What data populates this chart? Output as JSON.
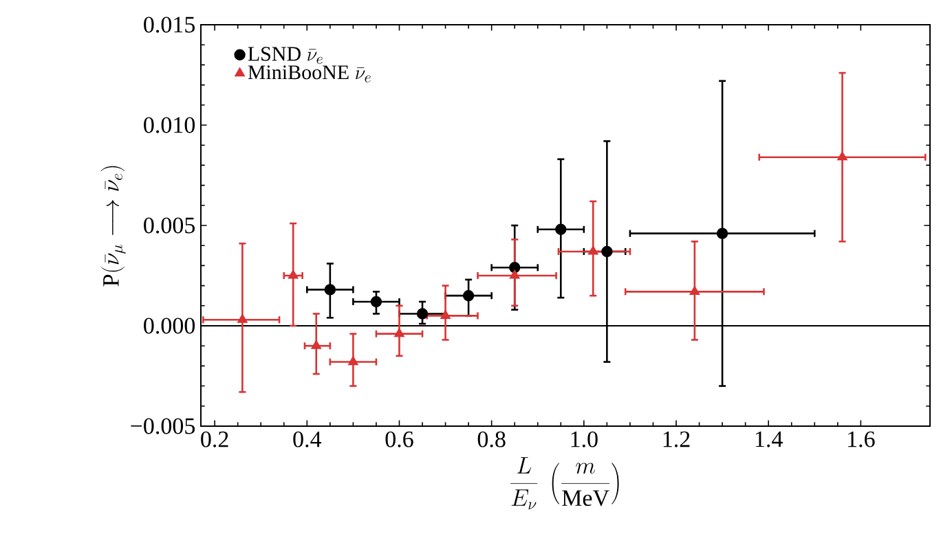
{
  "chart_data": {
    "type": "scatter",
    "xlabel": "\\frac{L}{E_{\\nu}}\\ \\left(\\frac{m}{\\mathrm{MeV}}\\right)",
    "ylabel": "\\mathrm{P}(\\bar{\\nu}_{\\mu}\\longrightarrow\\bar{\\nu}_{e})",
    "xlim": [
      0.17,
      1.75
    ],
    "ylim": [
      -0.005,
      0.015
    ],
    "xticks": [
      0.2,
      0.4,
      0.6,
      0.8,
      {
        "value": 1.0,
        "label": "1.0"
      },
      1.2,
      1.4,
      1.6
    ],
    "yticks": [
      {
        "value": -0.005,
        "label": "−0.005"
      },
      {
        "value": 0,
        "label": "0.000"
      },
      {
        "value": 0.005,
        "label": "0.005"
      },
      {
        "value": 0.01,
        "label": "0.010"
      },
      {
        "value": 0.015,
        "label": "0.015"
      }
    ],
    "legend": "top left",
    "ref_lines": [
      {
        "axis": "y",
        "value": 0,
        "color": "#000000"
      }
    ],
    "series": [
      {
        "name": "\\mathrm{LSND}\\ \\bar{\\nu}_{e}",
        "color": "#000000",
        "marker": "circle",
        "x": [
          0.45,
          0.55,
          0.65,
          0.75,
          0.85,
          0.95,
          1.05,
          1.3
        ],
        "values": [
          0.0018,
          0.0012,
          0.0006,
          0.0015,
          0.0029,
          0.0048,
          0.0037,
          0.0046
        ],
        "errors": [
          [
            0.0004,
            0.0031
          ],
          [
            0.0006,
            0.0017
          ],
          [
            0.0001,
            0.0012
          ],
          [
            0.0005,
            0.0023
          ],
          [
            0.0008,
            0.005
          ],
          [
            0.0014,
            0.0083
          ],
          [
            -0.0018,
            0.0092
          ],
          [
            -0.003,
            0.0122
          ]
        ],
        "xerrors": [
          [
            0.4,
            0.5
          ],
          [
            0.5,
            0.6
          ],
          [
            0.6,
            0.7
          ],
          [
            0.7,
            0.8
          ],
          [
            0.8,
            0.9
          ],
          [
            0.9,
            1.0
          ],
          [
            1.0,
            1.09
          ],
          [
            1.1,
            1.5
          ]
        ]
      },
      {
        "name": "\\mathrm{MiniBooNE}\\ \\bar{\\nu}_{e}",
        "color": "#d93333",
        "marker": "triangle",
        "x": [
          0.26,
          0.37,
          0.42,
          0.5,
          0.6,
          0.7,
          0.85,
          1.02,
          1.24,
          1.56
        ],
        "values": [
          0.0003,
          0.0025,
          -0.001,
          -0.0018,
          -0.0004,
          0.0005,
          0.0025,
          0.0037,
          0.0017,
          0.0084
        ],
        "errors": [
          [
            -0.0033,
            0.0041
          ],
          [
            0.0,
            0.0051
          ],
          [
            -0.0024,
            0.0006
          ],
          [
            -0.003,
            -0.0004
          ],
          [
            -0.0015,
            0.001
          ],
          [
            -0.0007,
            0.002
          ],
          [
            0.001,
            0.0043
          ],
          [
            0.0015,
            0.0062
          ],
          [
            -0.0007,
            0.0042
          ],
          [
            0.0042,
            0.0126
          ]
        ],
        "xerrors": [
          [
            0.175,
            0.34
          ],
          [
            0.35,
            0.39
          ],
          [
            0.395,
            0.45
          ],
          [
            0.45,
            0.55
          ],
          [
            0.55,
            0.65
          ],
          [
            0.66,
            0.77
          ],
          [
            0.77,
            0.94
          ],
          [
            0.945,
            1.1
          ],
          [
            1.09,
            1.39
          ],
          [
            1.38,
            1.74
          ]
        ]
      }
    ]
  }
}
